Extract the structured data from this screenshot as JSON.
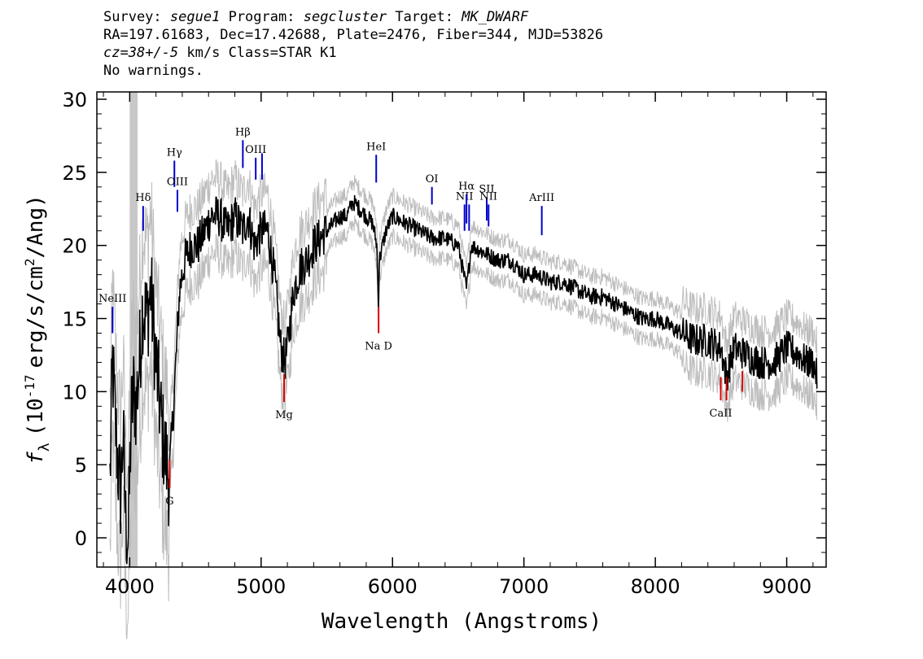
{
  "header": {
    "survey_label": "Survey:",
    "survey": "segue1",
    "program_label": "Program:",
    "program": "segcluster",
    "target_label": "Target:",
    "target": "MK_DWARF",
    "line2": "RA=197.61683, Dec=17.42688, Plate=2476, Fiber=344, MJD=53826",
    "cz_label": "cz=",
    "cz_value": "38+/-5",
    "cz_units": "km/s Class=STAR K1",
    "warnings": "No warnings."
  },
  "chart_data": {
    "type": "line",
    "xlabel": "Wavelength (Angstroms)",
    "ylabel_prefix": "f",
    "ylabel_sub": "λ",
    "ylabel_main": "(10",
    "ylabel_exp": "-17",
    "ylabel_units": "erg/s/cm",
    "ylabel_exp2": "2",
    "ylabel_end": "/Ang)",
    "xlim": [
      3750,
      9300
    ],
    "ylim": [
      -2,
      30.5
    ],
    "xticks": [
      4000,
      5000,
      6000,
      7000,
      8000,
      9000
    ],
    "yticks": [
      0,
      5,
      10,
      15,
      20,
      25,
      30
    ],
    "xtick_labels": [
      "4000",
      "5000",
      "6000",
      "7000",
      "8000",
      "9000"
    ],
    "ytick_labels": [
      "0",
      "5",
      "10",
      "15",
      "20",
      "25",
      "30"
    ],
    "masked_band": [
      4000,
      4060
    ],
    "series": [
      {
        "x": [
          3850,
          3870,
          3890,
          3910,
          3930,
          3950,
          3970,
          3990,
          4010,
          4030,
          4050,
          4080,
          4100,
          4130,
          4160,
          4200,
          4250,
          4300,
          4340,
          4380,
          4420,
          4470,
          4520,
          4570,
          4620,
          4680,
          4740,
          4800,
          4860,
          4900,
          4950,
          5000,
          5050,
          5100,
          5150,
          5180,
          5200,
          5250,
          5300,
          5350,
          5400,
          5450,
          5500,
          5550,
          5600,
          5650,
          5700,
          5750,
          5800,
          5850,
          5880,
          5893,
          5900,
          5950,
          6000,
          6100,
          6200,
          6300,
          6400,
          6500,
          6563,
          6600,
          6700,
          6800,
          6900,
          7000,
          7100,
          7200,
          7300,
          7400,
          7500,
          7600,
          7700,
          7800,
          7900,
          8000,
          8100,
          8200,
          8300,
          8400,
          8500,
          8542,
          8600,
          8700,
          8800,
          8900,
          9000,
          9100,
          9150,
          9200,
          9230
        ],
        "y": [
          4,
          12,
          8,
          5,
          3,
          7,
          1,
          0,
          8,
          10,
          9,
          13,
          16,
          15,
          17,
          12,
          7,
          4,
          10,
          17,
          19,
          20,
          20,
          21,
          22,
          22,
          21,
          22,
          21,
          22,
          20,
          21,
          21,
          18,
          13,
          12,
          13,
          17,
          18.5,
          19,
          20,
          20.5,
          21,
          21.5,
          22,
          22,
          23,
          22.5,
          22,
          21.5,
          20,
          16,
          19,
          21,
          22,
          21.5,
          21,
          20.5,
          20.5,
          20,
          17,
          20,
          19.5,
          19,
          19,
          18,
          18,
          17.5,
          17.5,
          17,
          16.5,
          16.5,
          16,
          15.5,
          15,
          15,
          14.5,
          14,
          13.5,
          13.5,
          13,
          11,
          13,
          12.5,
          12,
          12,
          13,
          12.5,
          12,
          12,
          11
        ]
      }
    ],
    "emission_lines": [
      {
        "label": "NeIII",
        "x": 3869,
        "y_top": 15.8,
        "y_bot": 14
      },
      {
        "label": "Hδ",
        "x": 4102,
        "y_top": 22.7,
        "y_bot": 21
      },
      {
        "label": "Hγ",
        "x": 4340,
        "y_top": 25.8,
        "y_bot": 24
      },
      {
        "label": "OIII",
        "x": 4363,
        "y_top": 23.8,
        "y_bot": 22.3
      },
      {
        "label": "Hβ",
        "x": 4861,
        "y_top": 27.2,
        "y_bot": 25.3
      },
      {
        "label": "OIII",
        "x": 4959,
        "y_top": 26,
        "y_bot": 24.5
      },
      {
        "label": "",
        "x": 5007,
        "y_top": 26.3,
        "y_bot": 24.5
      },
      {
        "label": "HeI",
        "x": 5876,
        "y_top": 26.2,
        "y_bot": 24.3
      },
      {
        "label": "OI",
        "x": 6300,
        "y_top": 24,
        "y_bot": 22.8
      },
      {
        "label": "NII",
        "x": 6548,
        "y_top": 22.8,
        "y_bot": 21
      },
      {
        "label": "Hα",
        "x": 6563,
        "y_top": 23.5,
        "y_bot": 21.5
      },
      {
        "label": "",
        "x": 6583,
        "y_top": 22.8,
        "y_bot": 21
      },
      {
        "label": "SII",
        "x": 6717,
        "y_top": 23.3,
        "y_bot": 21.7
      },
      {
        "label": "NII",
        "x": 6731,
        "y_top": 22.8,
        "y_bot": 21.3
      },
      {
        "label": "ArIII",
        "x": 7136,
        "y_top": 22.7,
        "y_bot": 20.7
      }
    ],
    "absorption_lines": [
      {
        "label": "G",
        "x": 4304,
        "y_top": 5.3,
        "y_bot": 3.4
      },
      {
        "label": "Mg",
        "x": 5175,
        "y_top": 11.2,
        "y_bot": 9.3
      },
      {
        "label": "Na D",
        "x": 5894,
        "y_top": 15.8,
        "y_bot": 14
      },
      {
        "label": "CaII",
        "x": 8498,
        "y_top": 11,
        "y_bot": 9.4
      },
      {
        "label": "",
        "x": 8542,
        "y_top": 11,
        "y_bot": 9.4
      },
      {
        "label": "",
        "x": 8662,
        "y_top": 11.4,
        "y_bot": 10
      }
    ],
    "colors": {
      "flux": "#000000",
      "error": "#bdbdbd",
      "masked": "#c8c8c8",
      "emission": "#0000cc",
      "absorption": "#dd0000"
    }
  }
}
